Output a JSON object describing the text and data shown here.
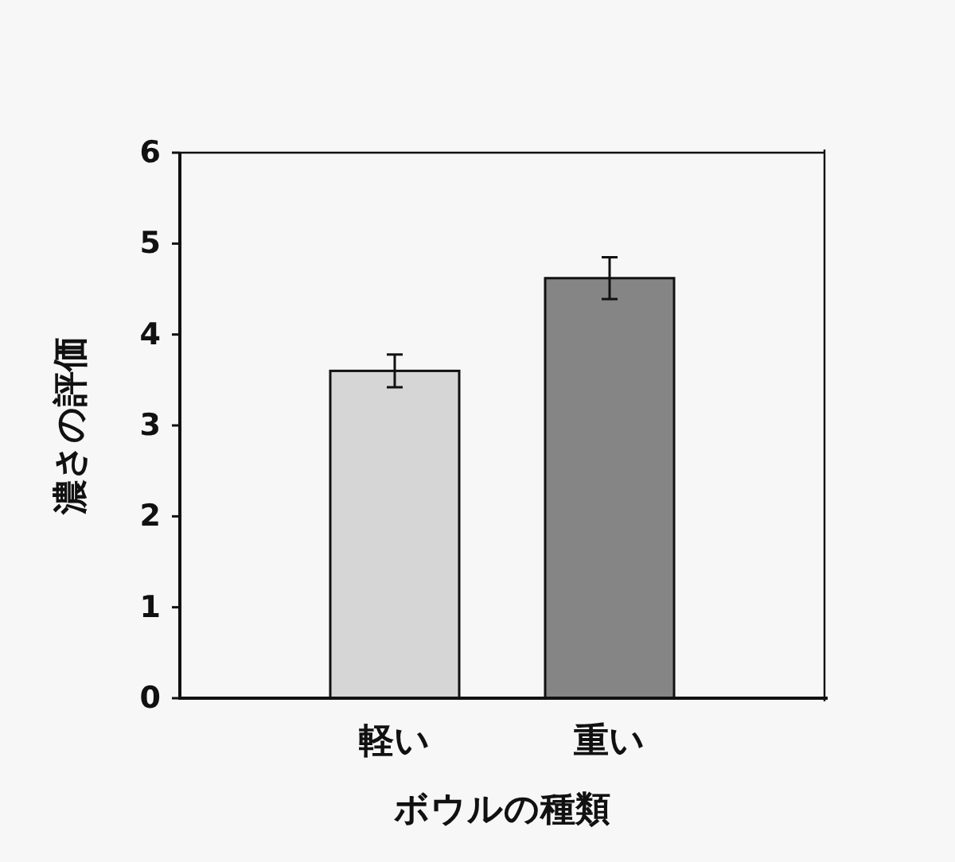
{
  "chart_data": {
    "type": "bar",
    "xlabel": "ボウルの種類",
    "ylabel": "濃さの評価",
    "categories": [
      "軽い",
      "重い"
    ],
    "values": [
      3.6,
      4.62
    ],
    "colors": [
      "#d6d6d6",
      "#858585"
    ],
    "errors": [
      0.18,
      0.23
    ],
    "ylim": [
      0,
      6
    ],
    "yticks": [
      0,
      1,
      2,
      3,
      4,
      5,
      6
    ],
    "grid": false
  }
}
